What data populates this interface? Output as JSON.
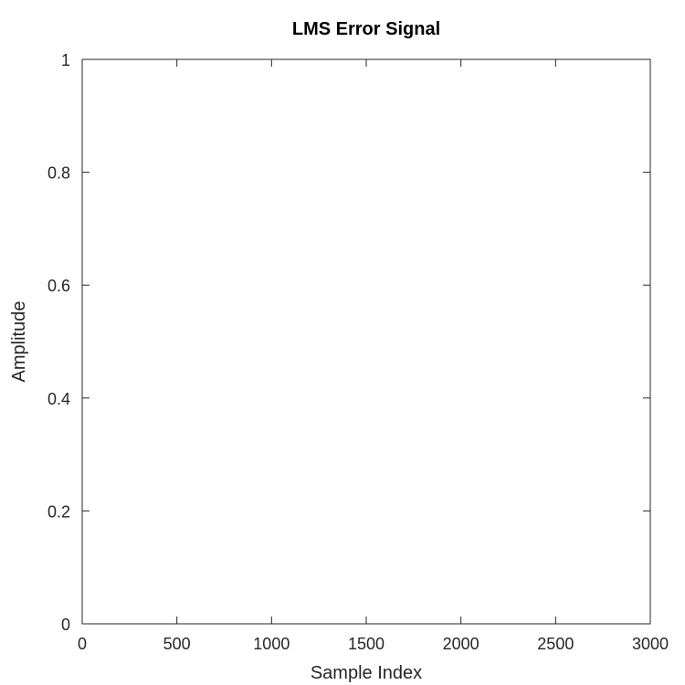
{
  "chart_data": {
    "type": "line",
    "title": "LMS Error Signal",
    "xlabel": "Sample Index",
    "ylabel": "Amplitude",
    "xlim": [
      0,
      3000
    ],
    "ylim": [
      0,
      1
    ],
    "x_ticks": [
      "0",
      "500",
      "1000",
      "1500",
      "2000",
      "2500",
      "3000"
    ],
    "y_ticks": [
      "0",
      "0.2",
      "0.4",
      "0.6",
      "0.8",
      "1"
    ],
    "grid": false,
    "series": []
  }
}
